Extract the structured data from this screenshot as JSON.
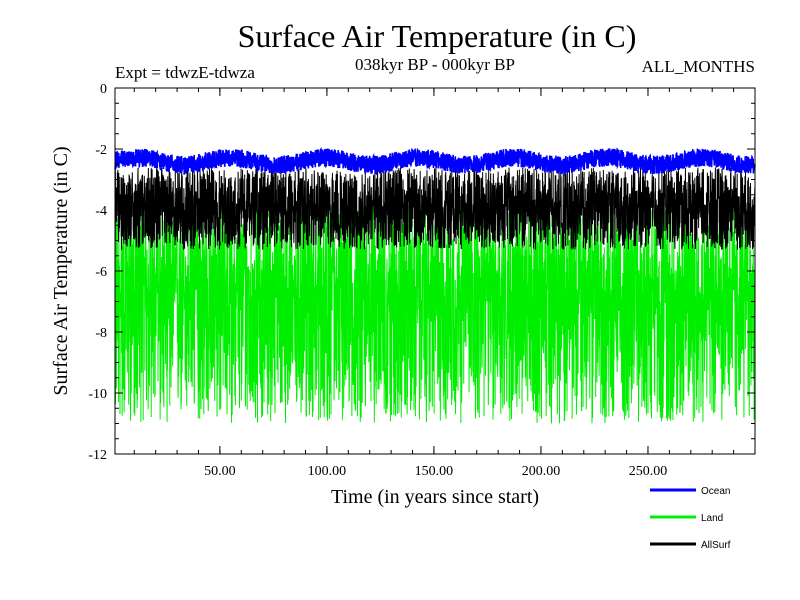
{
  "chart_data": {
    "type": "line",
    "title": "Surface Air Temperature (in C)",
    "subtitle": "038kyr BP - 000kyr BP",
    "annotation_left": "Expt = tdwzE-tdwza",
    "annotation_right": "ALL_MONTHS",
    "xlabel": "Time (in years since start)",
    "ylabel": "Surface Air Temperature (in C)",
    "xlim": [
      1,
      300
    ],
    "ylim": [
      -12,
      0
    ],
    "xticks": [
      50,
      100,
      150,
      200,
      250
    ],
    "xtick_labels": [
      "50.00",
      "100.00",
      "150.00",
      "200.00",
      "250.00"
    ],
    "yticks": [
      0,
      -2,
      -4,
      -6,
      -8,
      -10,
      -12
    ],
    "ytick_labels": [
      "0",
      "-2",
      "-4",
      "-6",
      "-8",
      "-10",
      "-12"
    ],
    "grid": false,
    "legend_placement": "bottom-right, below plot",
    "series": [
      {
        "name": "Ocean",
        "color": "#0000ff",
        "mean": -2.4,
        "min": -2.9,
        "max": -1.8,
        "note_resolution": "monthly"
      },
      {
        "name": "Land",
        "color": "#00ee00",
        "mean": -6.7,
        "min": -11.0,
        "max": -3.8,
        "note_resolution": "monthly"
      },
      {
        "name": "AllSurf",
        "color": "#000000",
        "mean": -3.9,
        "min": -5.3,
        "max": -2.6,
        "note_resolution": "monthly"
      }
    ]
  }
}
